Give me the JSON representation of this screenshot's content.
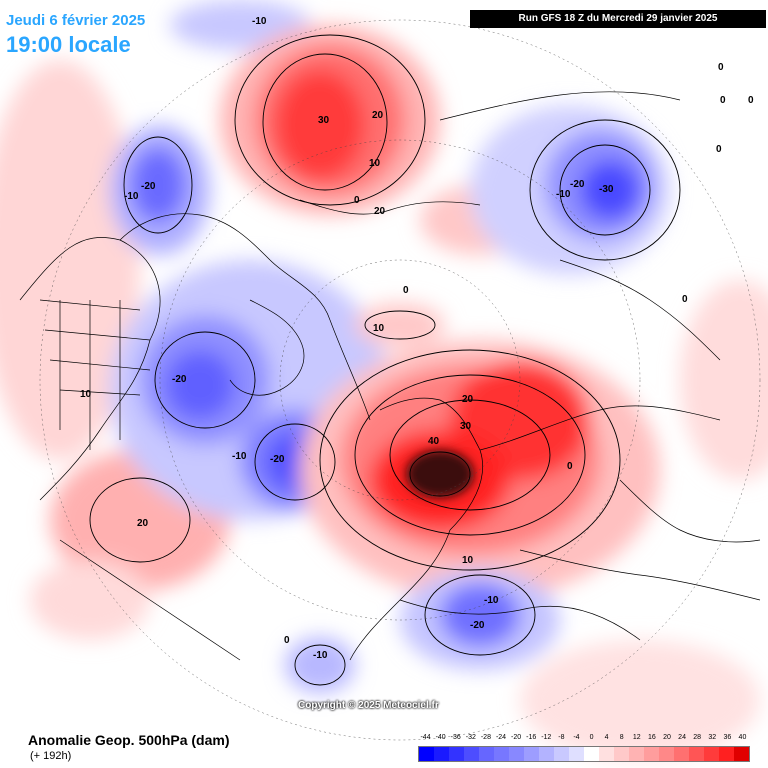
{
  "header": {
    "date_label": "Jeudi 6 février 2025",
    "time_label": "19:00 locale",
    "run_label": "Run GFS 18 Z du Mercredi 29 janvier 2025"
  },
  "footer": {
    "copyright": "Copyright © 2025 Meteociel.fr",
    "map_title": "Anomalie Geop. 500hPa (dam)",
    "lead_time": "(+ 192h)"
  },
  "colors": {
    "ocean": "#ffffff",
    "strong_negative": "#1a1aff",
    "strong_positive": "#ff1a1a",
    "extreme_positive": "#2b0f0f",
    "coast": "#000000"
  },
  "scale": {
    "labels": [
      "-44",
      "-40",
      "-36",
      "-32",
      "-28",
      "-24",
      "-20",
      "-16",
      "-12",
      "-8",
      "-4",
      "0",
      "4",
      "8",
      "12",
      "16",
      "20",
      "24",
      "28",
      "32",
      "36",
      "40"
    ],
    "colors": [
      "#0000ff",
      "#1a1aff",
      "#3333ff",
      "#4d4dff",
      "#6666ff",
      "#7777ff",
      "#8888ff",
      "#9d9dff",
      "#b3b3ff",
      "#c9c9ff",
      "#dfdfff",
      "#ffffff",
      "#ffe0e0",
      "#ffc9c9",
      "#ffb3b3",
      "#ff9d9d",
      "#ff8888",
      "#ff7070",
      "#ff5555",
      "#ff3b3b",
      "#ff2020",
      "#e00000"
    ]
  },
  "contour_labels": [
    {
      "text": "-10",
      "key": "n1"
    },
    {
      "text": "30",
      "key": "p1"
    },
    {
      "text": "20",
      "key": "p2"
    },
    {
      "text": "10",
      "key": "p3"
    },
    {
      "text": "0",
      "key": "z1"
    },
    {
      "text": "-20",
      "key": "n2"
    },
    {
      "text": "-10",
      "key": "n3"
    },
    {
      "text": "-10",
      "key": "n4"
    },
    {
      "text": "-20",
      "key": "n5"
    },
    {
      "text": "-30",
      "key": "n6"
    },
    {
      "text": "0",
      "key": "z2"
    },
    {
      "text": "10",
      "key": "p4"
    },
    {
      "text": "-20",
      "key": "n7"
    },
    {
      "text": "10",
      "key": "p5"
    },
    {
      "text": "-10",
      "key": "n8"
    },
    {
      "text": "-20",
      "key": "n9"
    },
    {
      "text": "20",
      "key": "p6"
    },
    {
      "text": "40",
      "key": "p7"
    },
    {
      "text": "30",
      "key": "p8"
    },
    {
      "text": "20",
      "key": "p9"
    },
    {
      "text": "10",
      "key": "p10"
    },
    {
      "text": "0",
      "key": "z3"
    },
    {
      "text": "-10",
      "key": "n10"
    },
    {
      "text": "-20",
      "key": "n11"
    },
    {
      "text": "-10",
      "key": "n12"
    },
    {
      "text": "0",
      "key": "z4"
    },
    {
      "text": "20",
      "key": "p11"
    },
    {
      "text": "0",
      "key": "z5"
    },
    {
      "text": "0",
      "key": "z6"
    },
    {
      "text": "0",
      "key": "z7"
    },
    {
      "text": "0",
      "key": "z8"
    },
    {
      "text": "0",
      "key": "z9"
    }
  ]
}
